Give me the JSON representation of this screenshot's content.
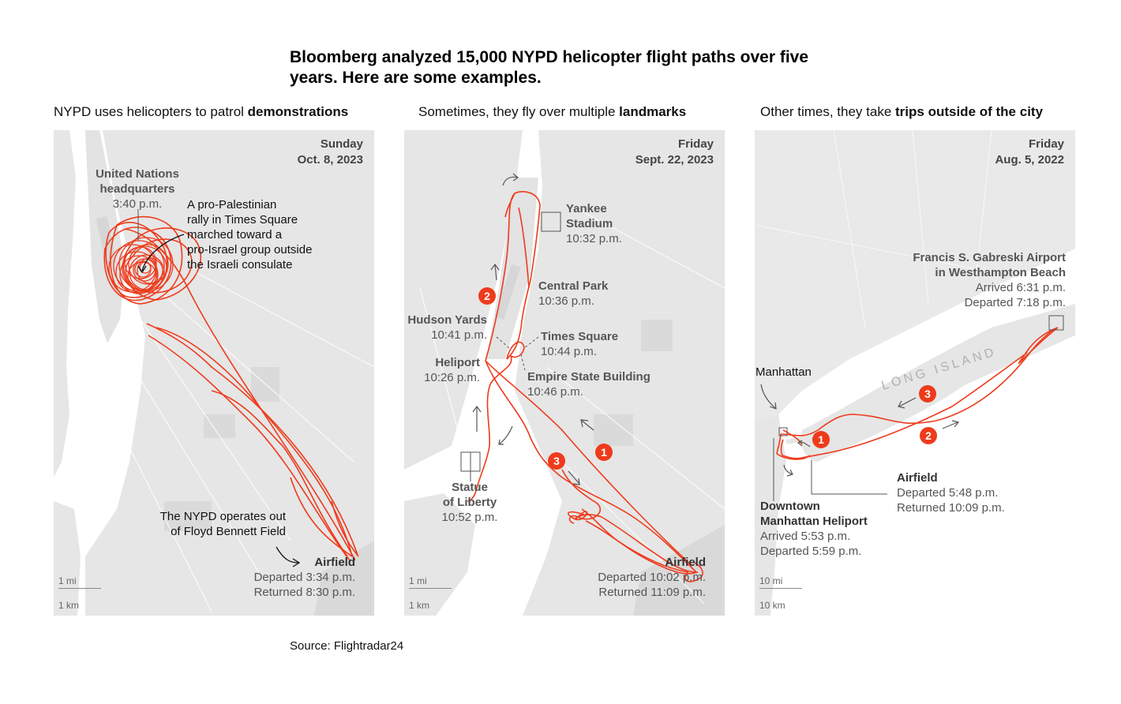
{
  "headline": "Bloomberg analyzed 15,000 NYPD helicopter flight paths over five years. Here are some examples.",
  "source": "Source: Flightradar24",
  "colors": {
    "flight_path": "#ee3b1c",
    "land": "#e6e6e6",
    "water": "#ffffff",
    "park": "#d9d9d9"
  },
  "panels": [
    {
      "subtitle_prefix": "NYPD uses helicopters to patrol ",
      "subtitle_bold": "demonstrations",
      "day": "Sunday",
      "date": "Oct. 8, 2023",
      "labels": {
        "un_name_1": "United Nations",
        "un_name_2": "headquarters",
        "un_time": "3:40 p.m.",
        "rally_1": "A pro-Palestinian",
        "rally_2": "rally in Times Square",
        "rally_3": "marched toward a",
        "rally_4": "pro-Israel group outside",
        "rally_5": "the Israeli consulate",
        "nypd_1": "The NYPD operates out",
        "nypd_2": "of Floyd Bennett Field",
        "airfield": "Airfield",
        "departed": "Departed 3:34 p.m.",
        "returned": "Returned 8:30 p.m."
      },
      "scale_mi": "1 mi",
      "scale_km": "1 km"
    },
    {
      "subtitle_prefix": "Sometimes, they fly over multiple ",
      "subtitle_bold": "landmarks",
      "day": "Friday",
      "date": "Sept. 22, 2023",
      "labels": {
        "yankee_1": "Yankee",
        "yankee_2": "Stadium",
        "yankee_time": "10:32 p.m.",
        "central_park": "Central Park",
        "central_park_time": "10:36 p.m.",
        "hudson_yards": "Hudson Yards",
        "hudson_yards_time": "10:41 p.m.",
        "times_square": "Times Square",
        "times_square_time": "10:44 p.m.",
        "heliport": "Heliport",
        "heliport_time": "10:26 p.m.",
        "esb": "Empire State Building",
        "esb_time": "10:46 p.m.",
        "statue_1": "Statue",
        "statue_2": "of Liberty",
        "statue_time": "10:52 p.m.",
        "airfield": "Airfield",
        "departed": "Departed 10:02 p.m.",
        "returned": "Returned 11:09 p.m."
      },
      "badges": [
        "1",
        "2",
        "3"
      ],
      "scale_mi": "1 mi",
      "scale_km": "1 km"
    },
    {
      "subtitle_prefix": "Other times, they take ",
      "subtitle_bold": "trips outside of the city",
      "day": "Friday",
      "date": "Aug. 5, 2022",
      "labels": {
        "gabreski_1": "Francis S. Gabreski Airport",
        "gabreski_2": "in Westhampton Beach",
        "gabreski_arrived": "Arrived 6:31 p.m.",
        "gabreski_departed": "Departed 7:18 p.m.",
        "long_island": "LONG ISLAND",
        "manhattan": "Manhattan",
        "airfield": "Airfield",
        "departed": "Departed 5:48 p.m.",
        "returned": "Returned 10:09 p.m.",
        "dmh_1": "Downtown",
        "dmh_2": "Manhattan Heliport",
        "dmh_arrived": "Arrived 5:53 p.m.",
        "dmh_departed": "Departed 5:59 p.m."
      },
      "badges": [
        "1",
        "2",
        "3"
      ],
      "scale_mi": "10 mi",
      "scale_km": "10 km"
    }
  ]
}
